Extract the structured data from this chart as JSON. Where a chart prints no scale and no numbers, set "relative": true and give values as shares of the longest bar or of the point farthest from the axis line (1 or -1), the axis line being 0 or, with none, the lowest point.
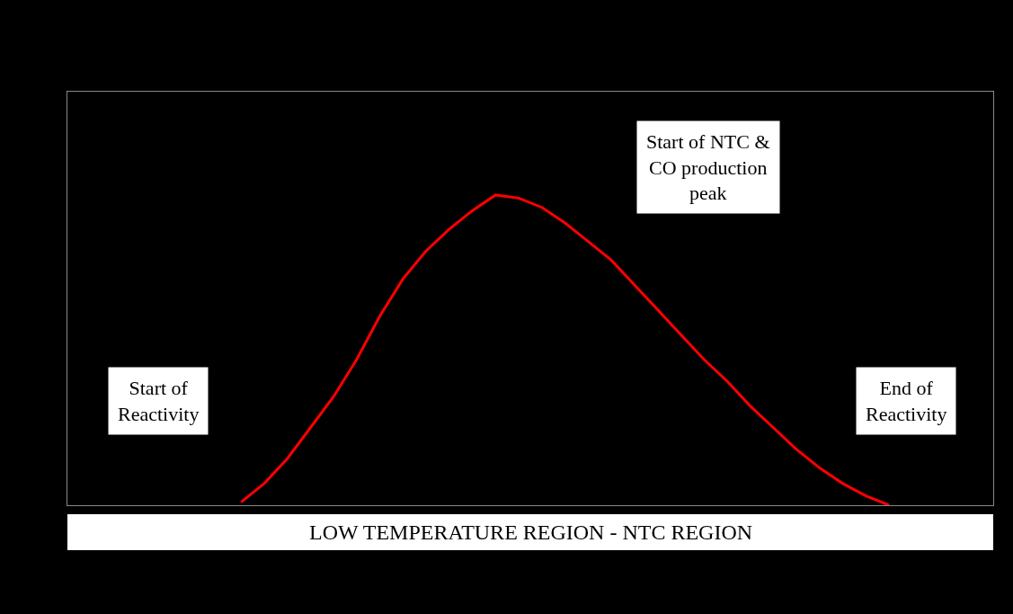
{
  "chart_data": {
    "type": "line",
    "relative": true,
    "color": "#ff0000",
    "categories": [
      null,
      null,
      null,
      null,
      null,
      null,
      null,
      null,
      null,
      null,
      null,
      null,
      null,
      null,
      null,
      null,
      null,
      null,
      null,
      null,
      null,
      null,
      null,
      null,
      null,
      null,
      null,
      null,
      null,
      null,
      null,
      null,
      null,
      null,
      null,
      null,
      null,
      null,
      null,
      null
    ],
    "values": [
      null,
      null,
      null,
      null,
      null,
      null,
      null,
      0.01,
      0.07,
      0.15,
      0.25,
      0.35,
      0.47,
      0.61,
      0.73,
      0.82,
      0.89,
      0.95,
      1.0,
      0.99,
      0.96,
      0.91,
      0.85,
      0.79,
      0.71,
      0.63,
      0.55,
      0.47,
      0.4,
      0.32,
      0.25,
      0.18,
      0.12,
      0.07,
      0.03,
      0.0,
      null,
      null,
      null,
      null
    ],
    "xlabel": "LOW TEMPERATURE REGION - NTC REGION",
    "annotations": [
      "Start of\nReactivity",
      "Start of NTC &\nCO production\npeak",
      "End of\nReactivity"
    ],
    "grid": false,
    "legend": false
  }
}
